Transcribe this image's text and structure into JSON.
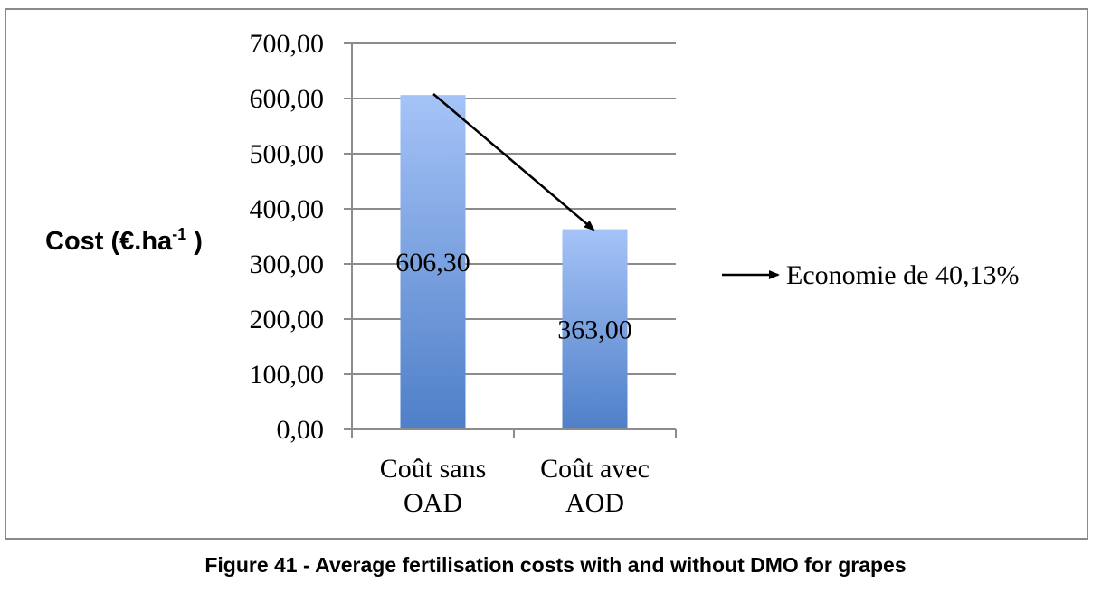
{
  "chart_data": {
    "type": "bar",
    "categories": [
      [
        "Coût sans",
        "OAD"
      ],
      [
        "Coût avec",
        "AOD"
      ]
    ],
    "values": [
      606.3,
      363.0
    ],
    "value_labels": [
      "606,30",
      "363,00"
    ],
    "ylabel_main": "Cost (€.ha",
    "ylabel_sup": "-1",
    "ylabel_end": " )",
    "ylim": [
      0,
      700
    ],
    "yticks": [
      "0,00",
      "100,00",
      "200,00",
      "300,00",
      "400,00",
      "500,00",
      "600,00",
      "700,00"
    ],
    "grid": true,
    "bar_color_top": "#a5c3f7",
    "bar_color_bottom": "#4f7fc8",
    "annotation": "Economie de 40,13%"
  },
  "caption": "Figure 41 - Average fertilisation costs with and without DMO for grapes"
}
